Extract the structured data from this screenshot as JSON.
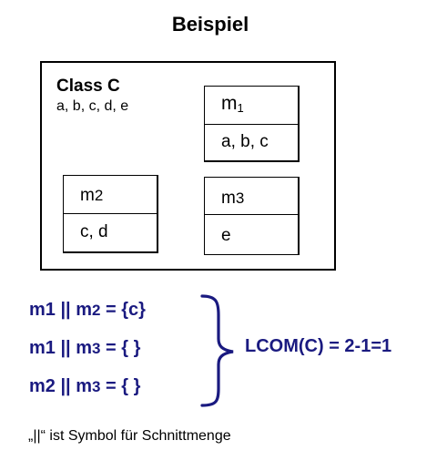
{
  "title": "Beispiel",
  "class_box": {
    "name": "Class C",
    "attributes": "a, b, c, d, e"
  },
  "methods": [
    {
      "name": "m",
      "index": "1",
      "attributes": "a, b, c"
    },
    {
      "name": "m",
      "index": "2",
      "attributes": "c, d"
    },
    {
      "name": "m",
      "index": "3",
      "attributes": "e"
    }
  ],
  "equations": [
    {
      "left": "m1 || m",
      "index": "2",
      "right": " = {c}"
    },
    {
      "left": "m1 || m",
      "index": "3",
      "right": " = { }"
    },
    {
      "left": "m2 || m",
      "index": "3",
      "right": " = { }"
    }
  ],
  "result": "LCOM(C) = 2-1=1",
  "footnote": "„||“ ist Symbol für Schnittmenge",
  "colors": {
    "equation_text": "#1a1a80",
    "box_border": "#000000"
  }
}
